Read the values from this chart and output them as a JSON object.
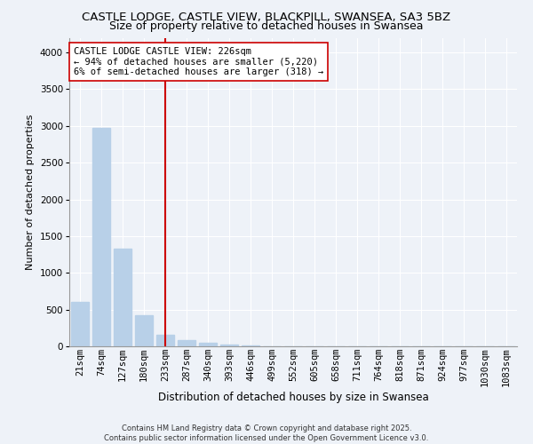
{
  "title_line1": "CASTLE LODGE, CASTLE VIEW, BLACKPILL, SWANSEA, SA3 5BZ",
  "title_line2": "Size of property relative to detached houses in Swansea",
  "xlabel": "Distribution of detached houses by size in Swansea",
  "ylabel": "Number of detached properties",
  "annotation_line1": "CASTLE LODGE CASTLE VIEW: 226sqm",
  "annotation_line2": "← 94% of detached houses are smaller (5,220)",
  "annotation_line3": "6% of semi-detached houses are larger (318) →",
  "categories": [
    "21sqm",
    "74sqm",
    "127sqm",
    "180sqm",
    "233sqm",
    "287sqm",
    "340sqm",
    "393sqm",
    "446sqm",
    "499sqm",
    "552sqm",
    "605sqm",
    "658sqm",
    "711sqm",
    "764sqm",
    "818sqm",
    "871sqm",
    "924sqm",
    "977sqm",
    "1030sqm",
    "1083sqm"
  ],
  "values": [
    600,
    2970,
    1330,
    425,
    155,
    80,
    45,
    20,
    8,
    0,
    0,
    0,
    0,
    0,
    0,
    0,
    0,
    0,
    0,
    0,
    0
  ],
  "bar_color": "#b8d0e8",
  "bar_edgecolor": "#b8d0e8",
  "vline_color": "#cc0000",
  "vline_x": 4,
  "annotation_box_edgecolor": "#cc0000",
  "annotation_box_facecolor": "#ffffff",
  "background_color": "#eef2f8",
  "grid_color": "#ffffff",
  "ylim": [
    0,
    4200
  ],
  "yticks": [
    0,
    500,
    1000,
    1500,
    2000,
    2500,
    3000,
    3500,
    4000
  ],
  "title1_fontsize": 9.5,
  "title2_fontsize": 9.0,
  "xlabel_fontsize": 8.5,
  "ylabel_fontsize": 8.0,
  "tick_fontsize": 7.5,
  "footer_line1": "Contains HM Land Registry data © Crown copyright and database right 2025.",
  "footer_line2": "Contains public sector information licensed under the Open Government Licence v3.0."
}
